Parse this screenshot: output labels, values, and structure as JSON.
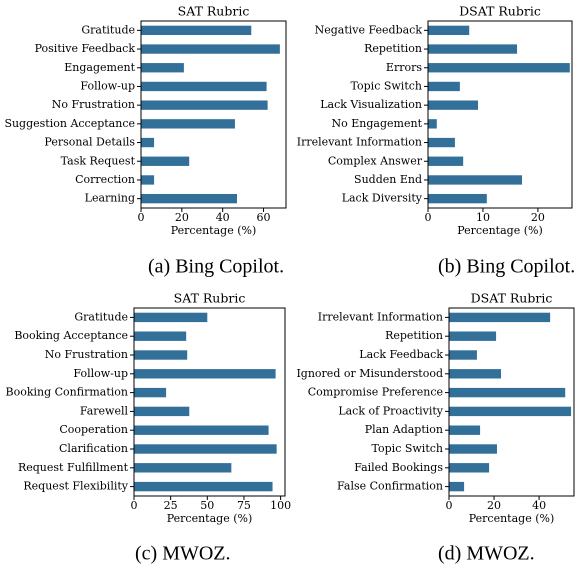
{
  "chart_data": [
    {
      "type": "bar",
      "orientation": "horizontal",
      "title": "SAT Rubric",
      "xlabel": "Percentage (%)",
      "caption": "(a) Bing Copilot.",
      "categories": [
        "Gratitude",
        "Positive Feedback",
        "Engagement",
        "Follow-up",
        "No Frustration",
        "Suggestion Acceptance",
        "Personal Details",
        "Task Request",
        "Correction",
        "Learning"
      ],
      "values": [
        54,
        68,
        21,
        61.5,
        62,
        46,
        6.4,
        23.6,
        6.4,
        47
      ],
      "color": "#32709a",
      "xlim": [
        0,
        71
      ],
      "xticks": [
        0,
        20,
        40,
        60
      ]
    },
    {
      "type": "bar",
      "orientation": "horizontal",
      "title": "DSAT Rubric",
      "xlabel": "Percentage (%)",
      "caption": "(b) Bing Copilot.",
      "categories": [
        "Negative Feedback",
        "Repetition",
        "Errors",
        "Topic Switch",
        "Lack Visualization",
        "No Engagement",
        "Irrelevant Information",
        "Complex Answer",
        "Sudden End",
        "Lack Diversity"
      ],
      "values": [
        7.5,
        16.2,
        25.8,
        5.8,
        9.1,
        1.6,
        4.9,
        6.4,
        17.1,
        10.7
      ],
      "color": "#32709a",
      "xlim": [
        0,
        26.2
      ],
      "xticks": [
        0,
        10,
        20
      ]
    },
    {
      "type": "bar",
      "orientation": "horizontal",
      "title": "SAT Rubric",
      "xlabel": "Percentage (%)",
      "caption": "(c) MWOZ.",
      "categories": [
        "Gratitude",
        "Booking Acceptance",
        "No Frustration",
        "Follow-up",
        "Booking Confirmation",
        "Farewell",
        "Cooperation",
        "Clarification",
        "Request Fulfillment",
        "Request Flexibility"
      ],
      "values": [
        50,
        35.6,
        36.3,
        96.6,
        21.9,
        37.7,
        91.8,
        97.3,
        66.4,
        94.5
      ],
      "color": "#32709a",
      "xlim": [
        0,
        103
      ],
      "xticks": [
        0,
        25,
        50,
        75,
        100
      ]
    },
    {
      "type": "bar",
      "orientation": "horizontal",
      "title": "DSAT Rubric",
      "xlabel": "Percentage (%)",
      "caption": "(d) MWOZ.",
      "categories": [
        "Irrelevant Information",
        "Repetition",
        "Lack Feedback",
        "Ignored or Misunderstood",
        "Compromise Preference",
        "Lack of Proactivity",
        "Plan Adaption",
        "Topic Switch",
        "Failed Bookings",
        "False Confirmation"
      ],
      "values": [
        44.9,
        20.9,
        12.4,
        23.1,
        51.6,
        54.2,
        13.8,
        21.3,
        17.8,
        6.7
      ],
      "color": "#32709a",
      "xlim": [
        0,
        55.5
      ],
      "xticks": [
        0,
        20,
        40
      ]
    }
  ]
}
